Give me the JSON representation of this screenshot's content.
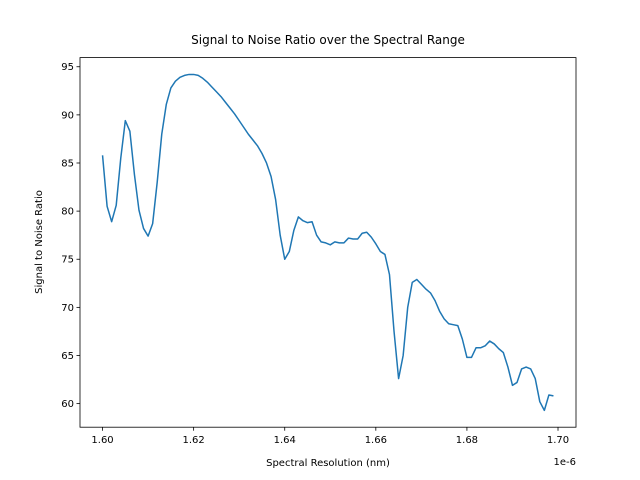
{
  "chart_data": {
    "type": "line",
    "title": "Signal to Noise Ratio over the Spectral Range",
    "x_label": "Spectral Resolution (nm)",
    "y_label": "Signal to Noise Ratio",
    "x_offset_text": "1e-6",
    "x": [
      1.6e-06,
      1.601e-06,
      1.602e-06,
      1.603e-06,
      1.604e-06,
      1.605e-06,
      1.606e-06,
      1.607e-06,
      1.608e-06,
      1.609e-06,
      1.61e-06,
      1.611e-06,
      1.612e-06,
      1.613e-06,
      1.614e-06,
      1.615e-06,
      1.616e-06,
      1.617e-06,
      1.618e-06,
      1.619e-06,
      1.62e-06,
      1.621e-06,
      1.622e-06,
      1.623e-06,
      1.624e-06,
      1.625e-06,
      1.626e-06,
      1.627e-06,
      1.628e-06,
      1.629e-06,
      1.63e-06,
      1.631e-06,
      1.632e-06,
      1.633e-06,
      1.634e-06,
      1.635e-06,
      1.636e-06,
      1.637e-06,
      1.638e-06,
      1.639e-06,
      1.64e-06,
      1.641e-06,
      1.642e-06,
      1.643e-06,
      1.644e-06,
      1.645e-06,
      1.646e-06,
      1.647e-06,
      1.648e-06,
      1.649e-06,
      1.65e-06,
      1.651e-06,
      1.652e-06,
      1.653e-06,
      1.654e-06,
      1.655e-06,
      1.656e-06,
      1.657e-06,
      1.658e-06,
      1.659e-06,
      1.66e-06,
      1.661e-06,
      1.662e-06,
      1.663e-06,
      1.664e-06,
      1.665e-06,
      1.666e-06,
      1.667e-06,
      1.668e-06,
      1.669e-06,
      1.67e-06,
      1.671e-06,
      1.672e-06,
      1.673e-06,
      1.674e-06,
      1.675e-06,
      1.676e-06,
      1.677e-06,
      1.678e-06,
      1.679e-06,
      1.68e-06,
      1.681e-06,
      1.682e-06,
      1.683e-06,
      1.684e-06,
      1.685e-06,
      1.686e-06,
      1.687e-06,
      1.688e-06,
      1.689e-06,
      1.69e-06,
      1.691e-06,
      1.692e-06,
      1.693e-06,
      1.694e-06,
      1.695e-06,
      1.696e-06,
      1.697e-06,
      1.698e-06,
      1.699e-06
    ],
    "series": [
      {
        "color": "#1f77b4",
        "values": [
          85.8,
          80.5,
          78.9,
          80.6,
          85.5,
          89.4,
          88.3,
          83.8,
          80.1,
          78.2,
          77.4,
          78.7,
          83.0,
          88.0,
          91.1,
          92.8,
          93.5,
          93.9,
          94.1,
          94.2,
          94.2,
          94.1,
          93.8,
          93.4,
          92.9,
          92.4,
          91.9,
          91.3,
          90.7,
          90.1,
          89.4,
          88.7,
          88.0,
          87.4,
          86.8,
          86.0,
          85.0,
          83.6,
          81.2,
          77.5,
          75.0,
          75.8,
          78.0,
          79.4,
          79.0,
          78.8,
          78.9,
          77.5,
          76.8,
          76.7,
          76.5,
          76.8,
          76.7,
          76.7,
          77.2,
          77.1,
          77.1,
          77.7,
          77.8,
          77.3,
          76.6,
          75.8,
          75.5,
          73.4,
          67.5,
          62.6,
          65.0,
          70.0,
          72.6,
          72.9,
          72.4,
          71.9,
          71.5,
          70.7,
          69.6,
          68.8,
          68.3,
          68.2,
          68.1,
          66.7,
          64.8,
          64.8,
          65.8,
          65.8,
          66.0,
          66.5,
          66.2,
          65.7,
          65.3,
          63.8,
          61.9,
          62.2,
          63.6,
          63.8,
          63.6,
          62.6,
          60.2,
          59.3,
          60.9,
          60.8
        ]
      }
    ],
    "xlim": [
      1.59505e-06,
      1.70395e-06
    ],
    "xticks": [
      {
        "value": 1.6e-06,
        "label": "1.60"
      },
      {
        "value": 1.62e-06,
        "label": "1.62"
      },
      {
        "value": 1.64e-06,
        "label": "1.64"
      },
      {
        "value": 1.66e-06,
        "label": "1.66"
      },
      {
        "value": 1.68e-06,
        "label": "1.68"
      },
      {
        "value": 1.7e-06,
        "label": "1.70"
      }
    ],
    "ylim": [
      57.55,
      95.95
    ],
    "yticks": [
      60,
      65,
      70,
      75,
      80,
      85,
      90,
      95
    ],
    "grid": false
  }
}
